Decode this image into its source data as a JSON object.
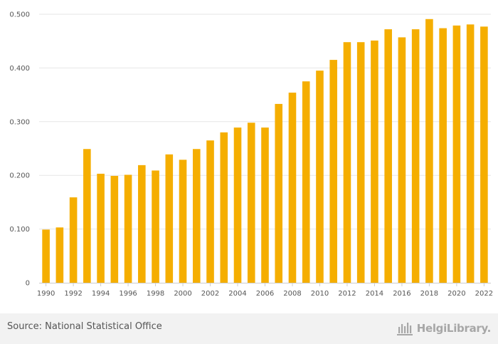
{
  "chart_data": {
    "type": "bar",
    "categories": [
      "1990",
      "1991",
      "1992",
      "1993",
      "1994",
      "1995",
      "1996",
      "1997",
      "1998",
      "1999",
      "2000",
      "2001",
      "2002",
      "2003",
      "2004",
      "2005",
      "2006",
      "2007",
      "2008",
      "2009",
      "2010",
      "2011",
      "2012",
      "2013",
      "2014",
      "2015",
      "2016",
      "2017",
      "2018",
      "2019",
      "2020",
      "2021",
      "2022"
    ],
    "values": [
      0.099,
      0.103,
      0.159,
      0.249,
      0.203,
      0.199,
      0.201,
      0.219,
      0.209,
      0.239,
      0.229,
      0.249,
      0.265,
      0.28,
      0.289,
      0.298,
      0.289,
      0.333,
      0.354,
      0.375,
      0.395,
      0.415,
      0.448,
      0.448,
      0.451,
      0.472,
      0.457,
      0.472,
      0.491,
      0.474,
      0.479,
      0.481,
      0.477
    ],
    "ylim": [
      0,
      0.5
    ],
    "yticks": [
      "0",
      "0.100",
      "0.200",
      "0.300",
      "0.400",
      "0.500"
    ],
    "xtick_labels": [
      "1990",
      "1992",
      "1994",
      "1996",
      "1998",
      "2000",
      "2002",
      "2004",
      "2006",
      "2008",
      "2010",
      "2012",
      "2014",
      "2016",
      "2018",
      "2020",
      "2022"
    ],
    "grid": true,
    "bar_color": "#f5ae00",
    "grid_color": "#e6e6e6",
    "axis_color": "#cccccc"
  },
  "footer": {
    "source": "Source: National Statistical Office",
    "brand": "HelgiLibrary.",
    "brand_icon": "library-building-icon",
    "background": "#f2f2f2"
  }
}
